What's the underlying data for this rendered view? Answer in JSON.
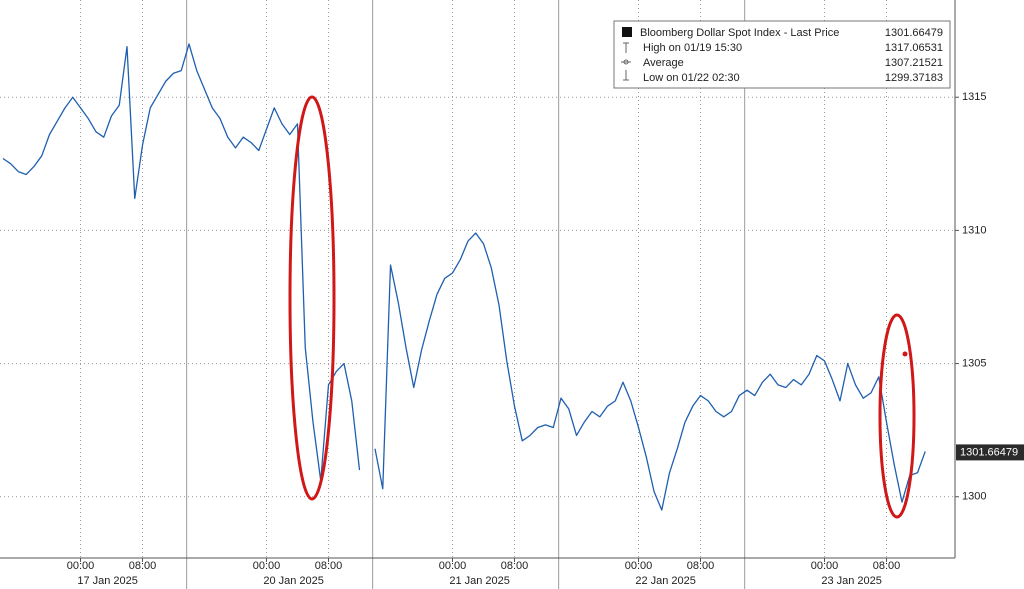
{
  "chart_data": {
    "type": "line",
    "x": [
      "2025-01-16 14:00",
      "2025-01-16 15:00",
      "2025-01-16 16:00",
      "2025-01-16 17:00",
      "2025-01-16 18:00",
      "2025-01-16 19:00",
      "2025-01-16 20:00",
      "2025-01-16 21:00",
      "2025-01-16 22:00",
      "2025-01-16 23:00",
      "2025-01-17 00:00",
      "2025-01-17 01:00",
      "2025-01-17 02:00",
      "2025-01-17 03:00",
      "2025-01-17 04:00",
      "2025-01-17 05:00",
      "2025-01-17 06:00",
      "2025-01-17 07:00",
      "2025-01-17 08:00",
      "2025-01-17 09:00",
      "2025-01-17 10:00",
      "2025-01-17 11:00",
      "2025-01-17 12:00",
      "2025-01-17 13:00",
      "2025-01-19 14:00",
      "2025-01-19 15:00",
      "2025-01-19 16:00",
      "2025-01-19 17:00",
      "2025-01-19 18:00",
      "2025-01-19 19:00",
      "2025-01-19 20:00",
      "2025-01-19 21:00",
      "2025-01-19 22:00",
      "2025-01-19 23:00",
      "2025-01-20 00:00",
      "2025-01-20 01:00",
      "2025-01-20 02:00",
      "2025-01-20 03:00",
      "2025-01-20 04:00",
      "2025-01-20 05:00",
      "2025-01-20 06:00",
      "2025-01-20 07:00",
      "2025-01-20 08:00",
      "2025-01-20 09:00",
      "2025-01-20 10:00",
      "2025-01-20 11:00",
      "2025-01-20 12:00",
      "2025-01-20 13:00",
      "2025-01-20 14:00",
      "2025-01-20 15:00",
      "2025-01-20 16:00",
      "2025-01-20 17:00",
      "2025-01-20 18:00",
      "2025-01-20 19:00",
      "2025-01-20 20:00",
      "2025-01-20 21:00",
      "2025-01-20 22:00",
      "2025-01-20 23:00",
      "2025-01-21 00:00",
      "2025-01-21 01:00",
      "2025-01-21 02:00",
      "2025-01-21 03:00",
      "2025-01-21 04:00",
      "2025-01-21 05:00",
      "2025-01-21 06:00",
      "2025-01-21 07:00",
      "2025-01-21 08:00",
      "2025-01-21 09:00",
      "2025-01-21 10:00",
      "2025-01-21 11:00",
      "2025-01-21 12:00",
      "2025-01-21 13:00",
      "2025-01-21 14:00",
      "2025-01-21 15:00",
      "2025-01-21 16:00",
      "2025-01-21 17:00",
      "2025-01-21 18:00",
      "2025-01-21 19:00",
      "2025-01-21 20:00",
      "2025-01-21 21:00",
      "2025-01-21 22:00",
      "2025-01-21 23:00",
      "2025-01-22 00:00",
      "2025-01-22 01:00",
      "2025-01-22 02:00",
      "2025-01-22 03:00",
      "2025-01-22 04:00",
      "2025-01-22 05:00",
      "2025-01-22 06:00",
      "2025-01-22 07:00",
      "2025-01-22 08:00",
      "2025-01-22 09:00",
      "2025-01-22 10:00",
      "2025-01-22 11:00",
      "2025-01-22 12:00",
      "2025-01-22 13:00",
      "2025-01-22 14:00",
      "2025-01-22 15:00",
      "2025-01-22 16:00",
      "2025-01-22 17:00",
      "2025-01-22 18:00",
      "2025-01-22 19:00",
      "2025-01-22 20:00",
      "2025-01-22 21:00",
      "2025-01-22 22:00",
      "2025-01-22 23:00",
      "2025-01-23 00:00",
      "2025-01-23 01:00",
      "2025-01-23 02:00",
      "2025-01-23 03:00",
      "2025-01-23 04:00",
      "2025-01-23 05:00",
      "2025-01-23 06:00",
      "2025-01-23 07:00",
      "2025-01-23 08:00",
      "2025-01-23 09:00",
      "2025-01-23 10:00",
      "2025-01-23 11:00",
      "2025-01-23 12:00",
      "2025-01-23 13:00"
    ],
    "series": [
      {
        "name": "Bloomberg Dollar Spot Index - Last Price",
        "color": "#1f5fb0",
        "values": [
          1312.7,
          1312.5,
          1312.2,
          1312.1,
          1312.4,
          1312.8,
          1313.6,
          1314.1,
          1314.6,
          1315.0,
          1314.6,
          1314.2,
          1313.7,
          1313.5,
          1314.3,
          1314.7,
          1316.9,
          1311.2,
          1313.2,
          1314.6,
          1315.1,
          1315.6,
          1315.9,
          1316.0,
          1317.0,
          1316.0,
          1315.3,
          1314.6,
          1314.2,
          1313.5,
          1313.1,
          1313.5,
          1313.3,
          1313.0,
          1313.8,
          1314.6,
          1314.0,
          1313.6,
          1314.0,
          1305.6,
          1302.8,
          1300.6,
          1304.2,
          1304.7,
          1305.0,
          1303.6,
          1301.0,
          null,
          1301.8,
          1300.3,
          1308.7,
          1307.3,
          1305.6,
          1304.1,
          1305.5,
          1306.6,
          1307.6,
          1308.2,
          1308.4,
          1308.9,
          1309.6,
          1309.9,
          1309.5,
          1308.6,
          1307.2,
          1305.1,
          1303.4,
          1302.1,
          1302.3,
          1302.6,
          1302.7,
          1302.6,
          1303.7,
          1303.3,
          1302.3,
          1302.8,
          1303.2,
          1303.0,
          1303.4,
          1303.6,
          1304.3,
          1303.6,
          1302.6,
          1301.5,
          1300.2,
          1299.5,
          1300.9,
          1301.8,
          1302.8,
          1303.4,
          1303.8,
          1303.6,
          1303.2,
          1303.0,
          1303.2,
          1303.8,
          1304.0,
          1303.8,
          1304.3,
          1304.6,
          1304.2,
          1304.1,
          1304.4,
          1304.2,
          1304.6,
          1305.3,
          1305.1,
          1304.4,
          1303.6,
          1305.0,
          1304.2,
          1303.7,
          1303.9,
          1304.5,
          1302.8,
          1301.2,
          1299.8,
          1300.8,
          1300.9,
          1301.7
        ]
      }
    ],
    "last_value": 1301.66479,
    "stats": [
      {
        "label": "High on 01/19 15:30",
        "value": 1317.06531
      },
      {
        "label": "Average",
        "value": 1307.21521
      },
      {
        "label": "Low on 01/22 02:30",
        "value": 1299.37183
      }
    ],
    "ylim": [
      1297.7,
      1318.65
    ],
    "yticks": [
      1300,
      1305,
      1310,
      1315
    ],
    "xticks": [
      {
        "value": "2025-01-17 00:00",
        "label": "00:00"
      },
      {
        "value": "2025-01-17 08:00",
        "label": "08:00"
      },
      {
        "value": "2025-01-20 00:00",
        "label": "00:00"
      },
      {
        "value": "2025-01-20 08:00",
        "label": "08:00"
      },
      {
        "value": "2025-01-21 00:00",
        "label": "00:00"
      },
      {
        "value": "2025-01-21 08:00",
        "label": "08:00"
      },
      {
        "value": "2025-01-22 00:00",
        "label": "00:00"
      },
      {
        "value": "2025-01-22 08:00",
        "label": "08:00"
      },
      {
        "value": "2025-01-23 00:00",
        "label": "00:00"
      },
      {
        "value": "2025-01-23 08:00",
        "label": "08:00"
      }
    ],
    "day_labels": [
      "17 Jan 2025",
      "20 Jan 2025",
      "21 Jan 2025",
      "22 Jan 2025",
      "23 Jan 2025"
    ],
    "grid": true
  }
}
